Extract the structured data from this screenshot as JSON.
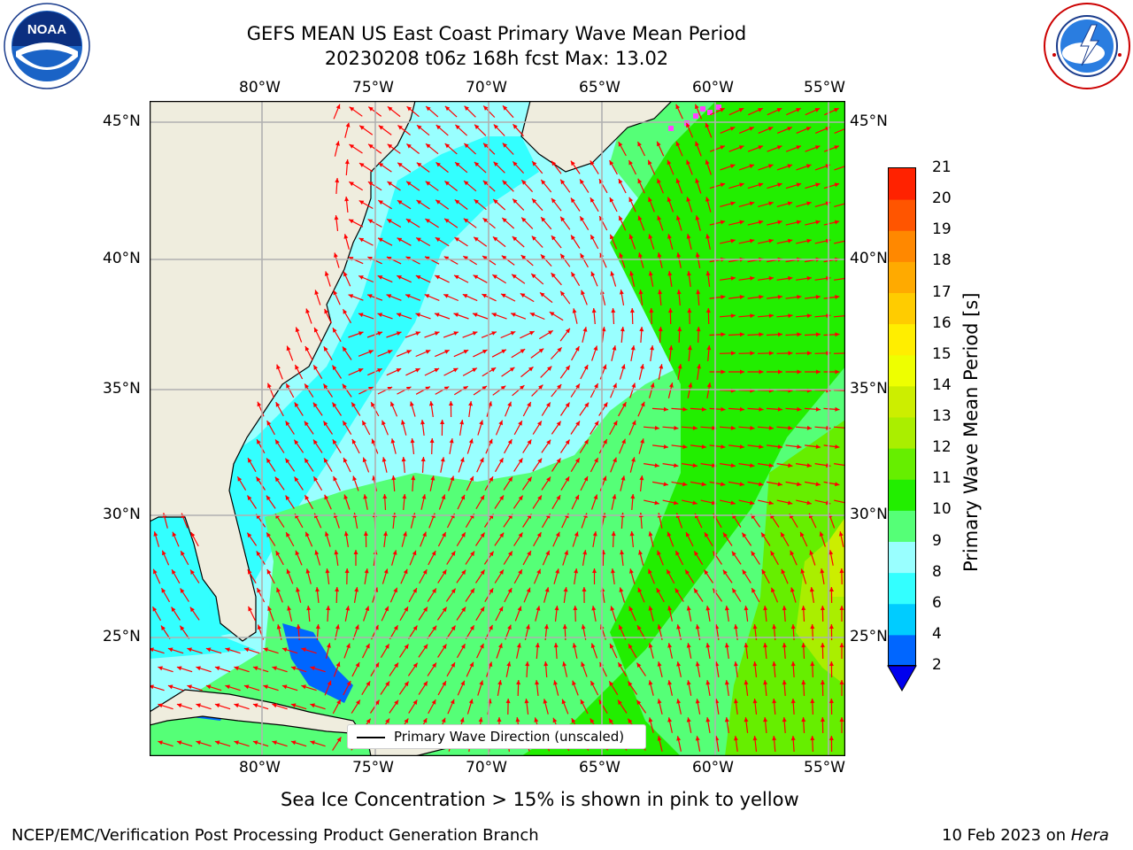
{
  "header": {
    "title_line1": "GEFS MEAN US East Coast Primary Wave Mean Period",
    "title_line2": "20230208 t06z 168h fcst   Max: 13.02"
  },
  "logos": {
    "left_org": "NOAA",
    "left_ring": "NATIONAL OCEANIC AND ATMOSPHERIC ADMINISTRATION · U.S. DEPARTMENT OF COMMERCE",
    "right_ring": "NATIONAL WEATHER SERVICE"
  },
  "map": {
    "lon_labels": [
      "80°W",
      "75°W",
      "70°W",
      "65°W",
      "60°W",
      "55°W"
    ],
    "lat_labels": [
      "45°N",
      "40°N",
      "35°N",
      "30°N",
      "25°N"
    ],
    "legend_text": "Primary Wave Direction (unscaled)",
    "colors": {
      "land": "#efedde",
      "grid": "#b0b0b0",
      "arrow": "#ff0000",
      "sea_ice": "#ff44ff"
    }
  },
  "colorbar": {
    "label": "Primary Wave Mean Period [s]",
    "ticks": [
      "2",
      "4",
      "6",
      "8",
      "9",
      "10",
      "11",
      "12",
      "13",
      "14",
      "15",
      "16",
      "17",
      "18",
      "19",
      "20",
      "21"
    ],
    "colors": [
      "#0066ff",
      "#00ccff",
      "#33ffff",
      "#99ffff",
      "#55ff77",
      "#22ee00",
      "#66ee00",
      "#aaee00",
      "#ccee00",
      "#eeff00",
      "#ffee00",
      "#ffcc00",
      "#ffaa00",
      "#ff8800",
      "#ff5500",
      "#ff2200",
      "#ff0000"
    ],
    "extend_color": "#0000ee"
  },
  "notes": {
    "sea_ice": "Sea Ice Concentration > 15% is shown in pink to yellow"
  },
  "footer": {
    "left": "NCEP/EMC/Verification Post Processing Product Generation Branch",
    "right_date": "10 Feb 2023 on ",
    "right_host": "Hera"
  }
}
